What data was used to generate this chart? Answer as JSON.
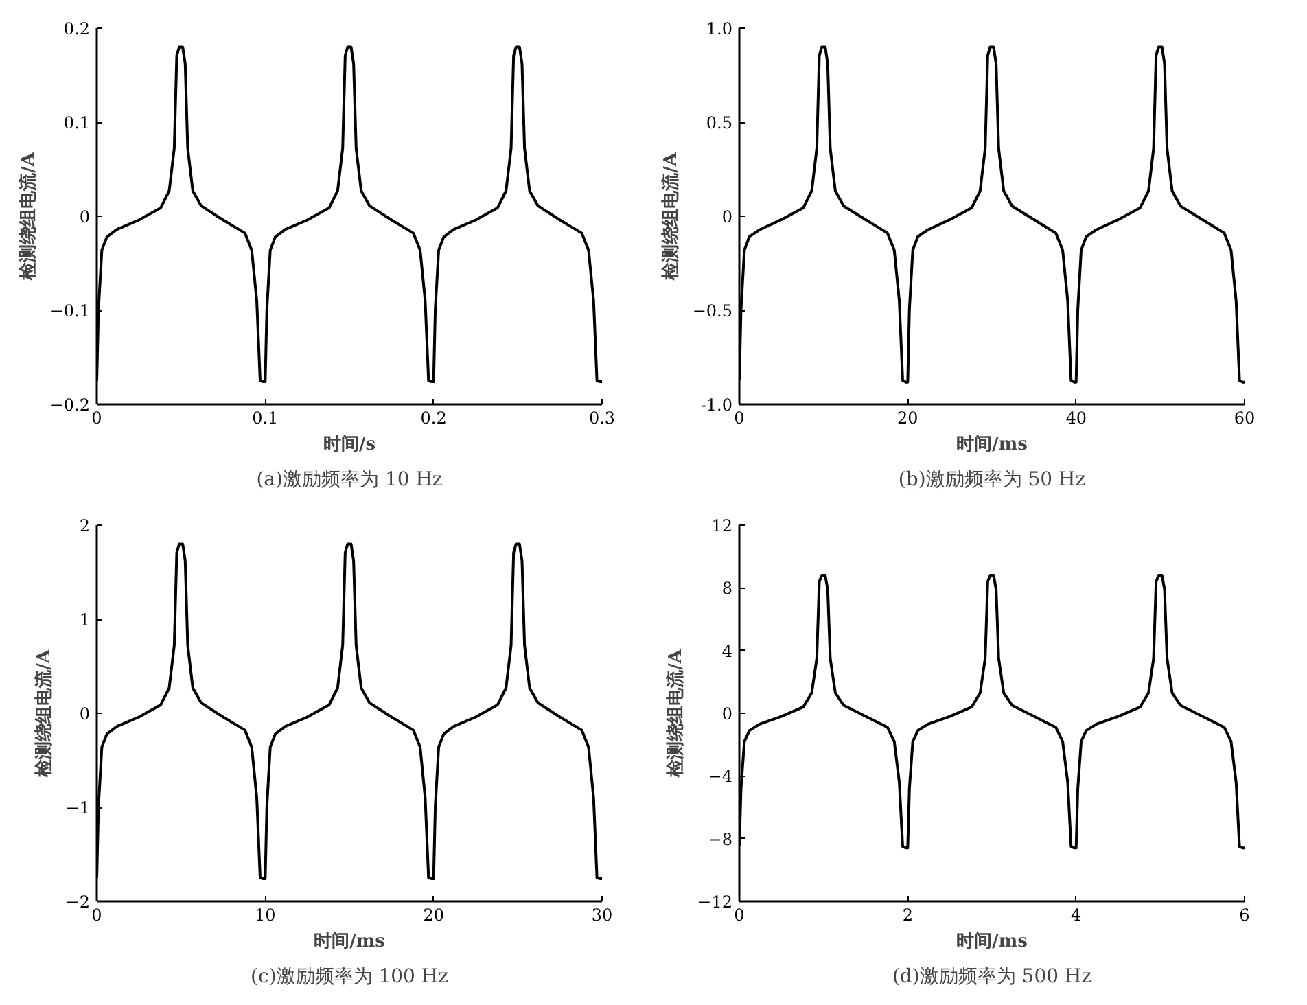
{
  "chart_data": [
    {
      "type": "line",
      "title": "(a)激励频率为 10 Hz",
      "xlabel": "时间/s",
      "ylabel": "检测绕组电流/A",
      "grid": false,
      "xlim": [
        0,
        0.3
      ],
      "xticks": [
        0,
        0.1,
        0.2,
        0.3
      ],
      "ylim": [
        -0.2,
        0.2
      ],
      "yticks": [
        -0.2,
        -0.1,
        0,
        0.1,
        0.2
      ],
      "series": [
        {
          "color": "#000000",
          "x": [
            0,
            0.001,
            0.003,
            0.006,
            0.012,
            0.025,
            0.038,
            0.043,
            0.046,
            0.0475,
            0.049,
            0.051,
            0.0525,
            0.054,
            0.057,
            0.062,
            0.075,
            0.088,
            0.092,
            0.095,
            0.097,
            0.099,
            0.1,
            0.101,
            0.103,
            0.106,
            0.112,
            0.125,
            0.138,
            0.143,
            0.146,
            0.1475,
            0.149,
            0.151,
            0.1525,
            0.154,
            0.157,
            0.162,
            0.175,
            0.188,
            0.192,
            0.195,
            0.197,
            0.199,
            0.2,
            0.201,
            0.203,
            0.206,
            0.212,
            0.225,
            0.238,
            0.243,
            0.246,
            0.2475,
            0.249,
            0.251,
            0.2525,
            0.254,
            0.257,
            0.262,
            0.275,
            0.288,
            0.292,
            0.295,
            0.297,
            0.299,
            0.3
          ],
          "values": [
            -0.175,
            -0.099,
            -0.036,
            -0.022,
            -0.014,
            -0.004,
            0.009,
            0.027,
            0.072,
            0.171,
            0.18,
            0.18,
            0.162,
            0.072,
            0.027,
            0.011,
            -0.004,
            -0.018,
            -0.036,
            -0.09,
            -0.175,
            -0.176,
            -0.176,
            -0.099,
            -0.036,
            -0.022,
            -0.014,
            -0.004,
            0.009,
            0.027,
            0.072,
            0.171,
            0.18,
            0.18,
            0.162,
            0.072,
            0.027,
            0.011,
            -0.004,
            -0.018,
            -0.036,
            -0.09,
            -0.175,
            -0.176,
            -0.176,
            -0.099,
            -0.036,
            -0.022,
            -0.014,
            -0.004,
            0.009,
            0.027,
            0.072,
            0.171,
            0.18,
            0.18,
            0.162,
            0.072,
            0.027,
            0.011,
            -0.004,
            -0.018,
            -0.036,
            -0.09,
            -0.175,
            -0.176,
            -0.176
          ]
        }
      ]
    },
    {
      "type": "line",
      "title": "(b)激励频率为 50 Hz",
      "xlabel": "时间/ms",
      "ylabel": "检测绕组电流/A",
      "grid": false,
      "xlim": [
        0,
        60
      ],
      "xticks": [
        0,
        20,
        40,
        60
      ],
      "ylim": [
        -1,
        1
      ],
      "yticks": [
        {
          "value": -1,
          "label": "-1.0"
        },
        -0.5,
        0,
        0.5,
        {
          "value": 1,
          "label": "1.0"
        }
      ],
      "series": [
        {
          "color": "#000000",
          "x": [
            0,
            0.2,
            0.6,
            1.2,
            2.4,
            5,
            7.6,
            8.6,
            9.2,
            9.5,
            9.8,
            10.2,
            10.5,
            10.8,
            11.4,
            12.4,
            15,
            17.6,
            18.4,
            19,
            19.4,
            19.8,
            20,
            20.2,
            20.6,
            21.2,
            22.4,
            25,
            27.6,
            28.6,
            29.2,
            29.5,
            29.8,
            30.2,
            30.5,
            30.8,
            31.4,
            32.4,
            35,
            37.6,
            38.4,
            39,
            39.4,
            39.8,
            40,
            40.2,
            40.6,
            41.2,
            42.4,
            45,
            47.6,
            48.6,
            49.2,
            49.5,
            49.8,
            50.2,
            50.5,
            50.8,
            51.4,
            52.4,
            55,
            57.6,
            58.4,
            59,
            59.4,
            59.8,
            60
          ],
          "values": [
            -0.873,
            -0.495,
            -0.18,
            -0.108,
            -0.072,
            -0.018,
            0.045,
            0.135,
            0.36,
            0.855,
            0.9,
            0.9,
            0.81,
            0.36,
            0.135,
            0.054,
            -0.018,
            -0.09,
            -0.18,
            -0.45,
            -0.873,
            -0.882,
            -0.882,
            -0.495,
            -0.18,
            -0.108,
            -0.072,
            -0.018,
            0.045,
            0.135,
            0.36,
            0.855,
            0.9,
            0.9,
            0.81,
            0.36,
            0.135,
            0.054,
            -0.018,
            -0.09,
            -0.18,
            -0.45,
            -0.873,
            -0.882,
            -0.882,
            -0.495,
            -0.18,
            -0.108,
            -0.072,
            -0.018,
            0.045,
            0.135,
            0.36,
            0.855,
            0.9,
            0.9,
            0.81,
            0.36,
            0.135,
            0.054,
            -0.018,
            -0.09,
            -0.18,
            -0.45,
            -0.873,
            -0.882,
            -0.882
          ]
        }
      ]
    },
    {
      "type": "line",
      "title": "(c)激励频率为 100 Hz",
      "xlabel": "时间/ms",
      "ylabel": "检测绕组电流/A",
      "grid": false,
      "xlim": [
        0,
        30
      ],
      "xticks": [
        0,
        10,
        20,
        30
      ],
      "ylim": [
        -2,
        2
      ],
      "yticks": [
        -2,
        -1,
        0,
        1,
        2
      ],
      "series": [
        {
          "color": "#000000",
          "x": [
            0,
            0.1,
            0.3,
            0.6,
            1.2,
            2.5,
            3.8,
            4.3,
            4.6,
            4.75,
            4.9,
            5.1,
            5.25,
            5.4,
            5.7,
            6.2,
            7.5,
            8.8,
            9.2,
            9.5,
            9.7,
            9.9,
            10,
            10.1,
            10.3,
            10.6,
            11.2,
            12.5,
            13.8,
            14.3,
            14.6,
            14.75,
            14.9,
            15.1,
            15.25,
            15.4,
            15.7,
            16.2,
            17.5,
            18.8,
            19.2,
            19.5,
            19.7,
            19.9,
            20,
            20.1,
            20.3,
            20.6,
            21.2,
            22.5,
            23.8,
            24.3,
            24.6,
            24.75,
            24.9,
            25.1,
            25.25,
            25.4,
            25.7,
            26.2,
            27.5,
            28.8,
            29.2,
            29.5,
            29.7,
            29.9,
            30
          ],
          "values": [
            -1.75,
            -0.99,
            -0.36,
            -0.22,
            -0.14,
            -0.04,
            0.09,
            0.27,
            0.72,
            1.71,
            1.8,
            1.8,
            1.62,
            0.72,
            0.27,
            0.11,
            -0.04,
            -0.18,
            -0.36,
            -0.9,
            -1.75,
            -1.76,
            -1.76,
            -0.99,
            -0.36,
            -0.22,
            -0.14,
            -0.04,
            0.09,
            0.27,
            0.72,
            1.71,
            1.8,
            1.8,
            1.62,
            0.72,
            0.27,
            0.11,
            -0.04,
            -0.18,
            -0.36,
            -0.9,
            -1.75,
            -1.76,
            -1.76,
            -0.99,
            -0.36,
            -0.22,
            -0.14,
            -0.04,
            0.09,
            0.27,
            0.72,
            1.71,
            1.8,
            1.8,
            1.62,
            0.72,
            0.27,
            0.11,
            -0.04,
            -0.18,
            -0.36,
            -0.9,
            -1.75,
            -1.76,
            -1.76
          ]
        }
      ]
    },
    {
      "type": "line",
      "title": "(d)激励频率为 500 Hz",
      "xlabel": "时间/ms",
      "ylabel": "检测绕组电流/A",
      "grid": false,
      "xlim": [
        0,
        6
      ],
      "xticks": [
        0,
        2,
        4,
        6
      ],
      "ylim": [
        -12,
        12
      ],
      "yticks": [
        -12,
        -8,
        -4,
        0,
        4,
        8,
        12
      ],
      "series": [
        {
          "color": "#000000",
          "x": [
            0,
            0.02,
            0.06,
            0.12,
            0.24,
            0.5,
            0.76,
            0.86,
            0.92,
            0.95,
            0.98,
            1.02,
            1.05,
            1.08,
            1.14,
            1.24,
            1.5,
            1.76,
            1.84,
            1.9,
            1.94,
            1.98,
            2,
            2.02,
            2.06,
            2.12,
            2.24,
            2.5,
            2.76,
            2.86,
            2.92,
            2.95,
            2.98,
            3.02,
            3.05,
            3.08,
            3.14,
            3.24,
            3.5,
            3.76,
            3.84,
            3.9,
            3.94,
            3.98,
            4,
            4.02,
            4.06,
            4.12,
            4.24,
            4.5,
            4.76,
            4.86,
            4.92,
            4.95,
            4.98,
            5.02,
            5.05,
            5.08,
            5.14,
            5.24,
            5.5,
            5.76,
            5.84,
            5.9,
            5.94,
            5.98,
            6
          ],
          "values": [
            -8.5,
            -4.8,
            -1.8,
            -1.1,
            -0.7,
            -0.2,
            0.4,
            1.3,
            3.5,
            8.4,
            8.8,
            8.8,
            7.9,
            3.5,
            1.3,
            0.5,
            -0.2,
            -0.9,
            -1.8,
            -4.4,
            -8.5,
            -8.6,
            -8.6,
            -4.8,
            -1.8,
            -1.1,
            -0.7,
            -0.2,
            0.4,
            1.3,
            3.5,
            8.4,
            8.8,
            8.8,
            7.9,
            3.5,
            1.3,
            0.5,
            -0.2,
            -0.9,
            -1.8,
            -4.4,
            -8.5,
            -8.6,
            -8.6,
            -4.8,
            -1.8,
            -1.1,
            -0.7,
            -0.2,
            0.4,
            1.3,
            3.5,
            8.4,
            8.8,
            8.8,
            7.9,
            3.5,
            1.3,
            0.5,
            -0.2,
            -0.9,
            -1.8,
            -4.4,
            -8.5,
            -8.6,
            -8.6
          ]
        }
      ]
    }
  ]
}
